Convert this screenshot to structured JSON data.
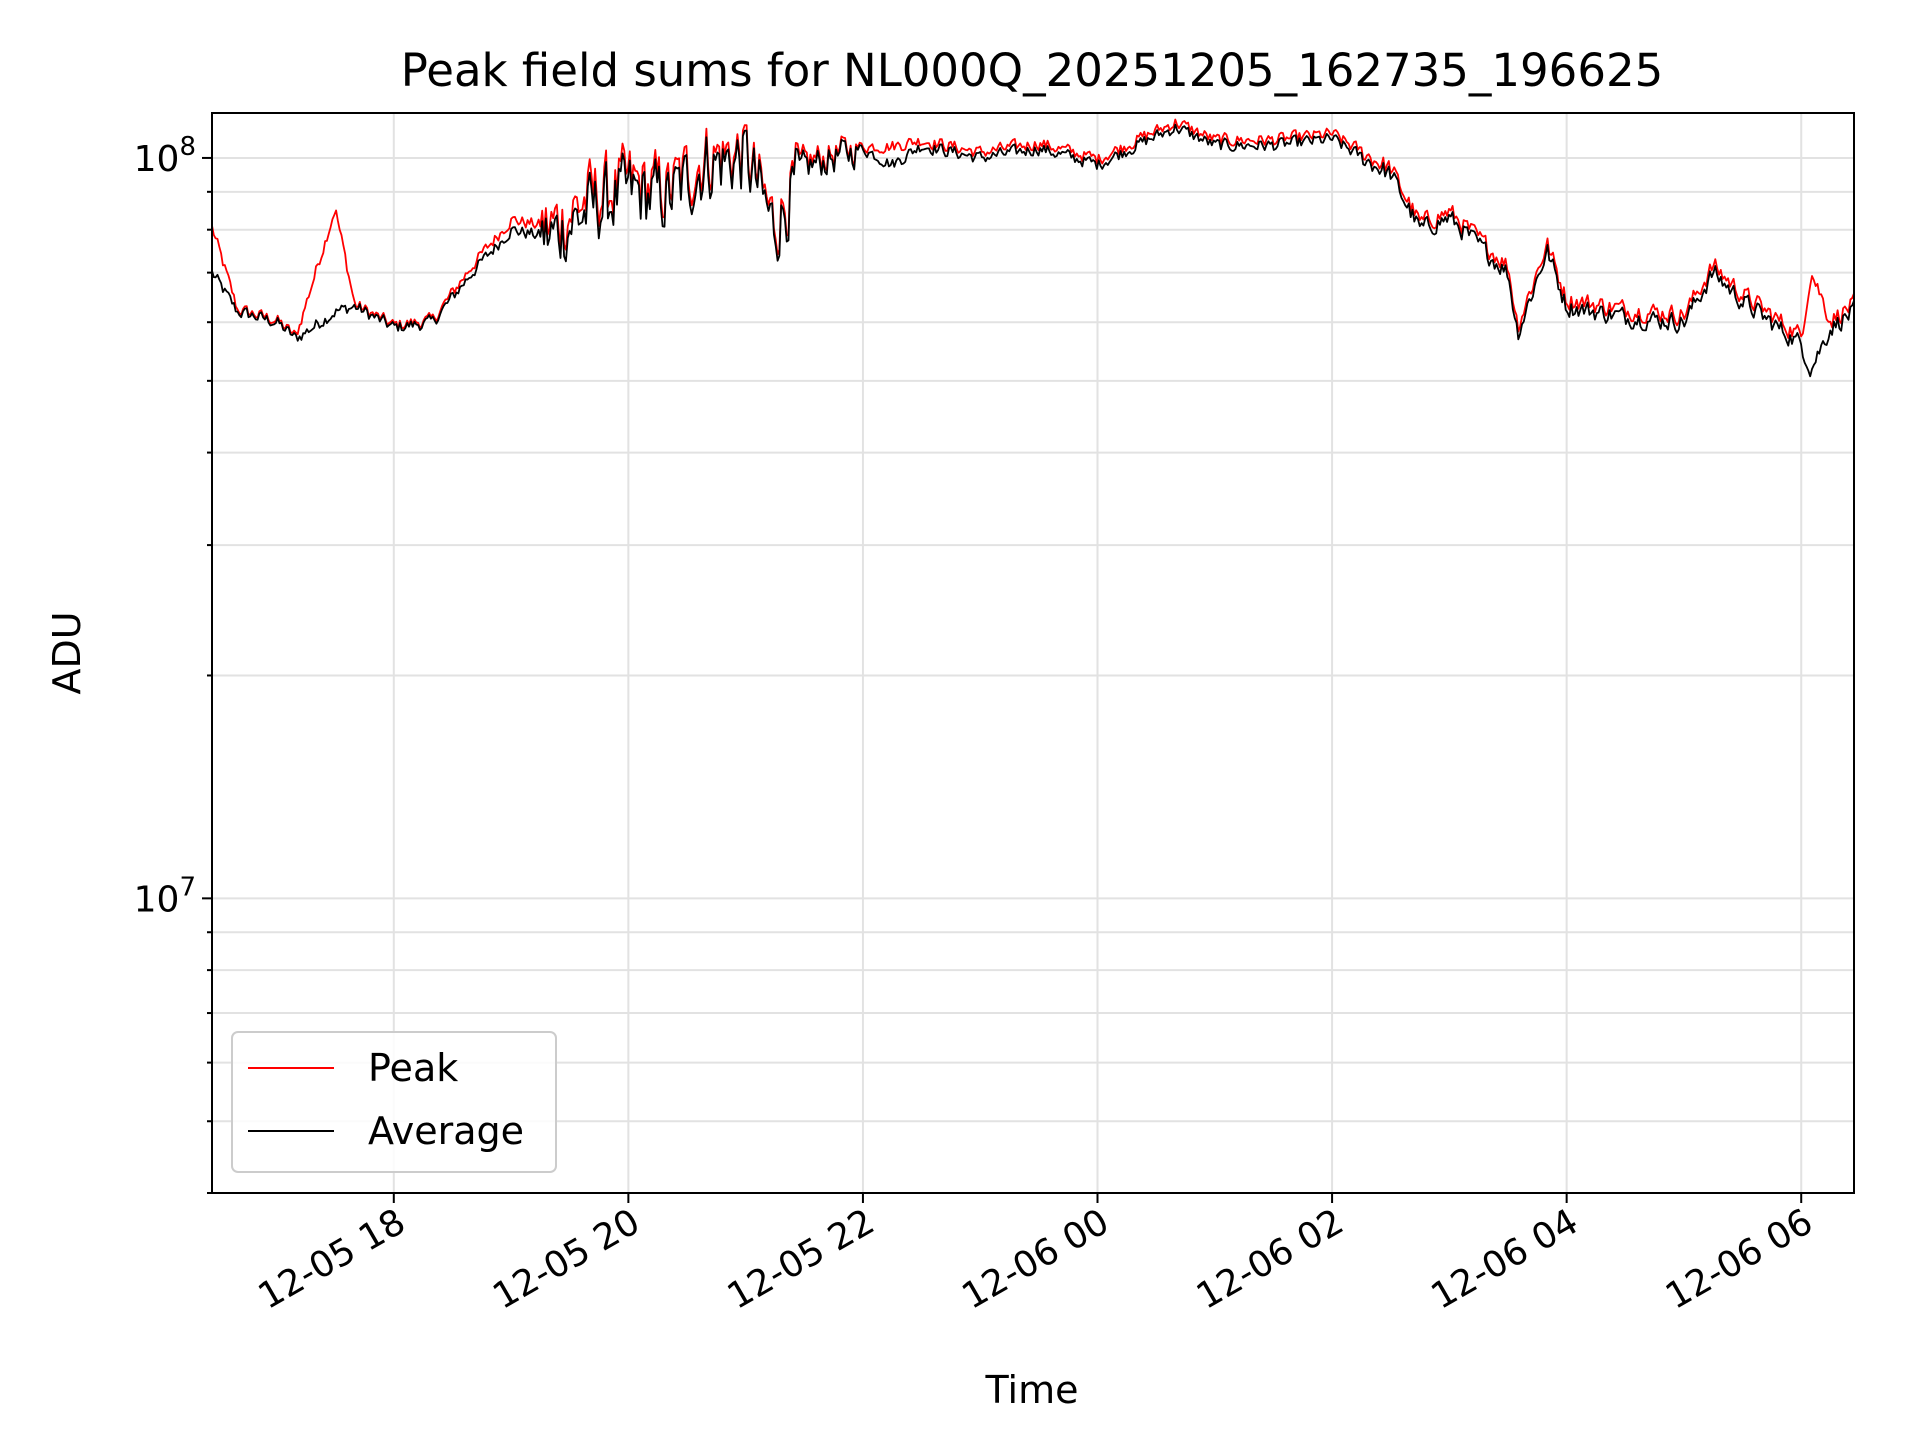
{
  "chart_data": {
    "type": "line",
    "title": "Peak field sums for NL000Q_20251205_162735_196625",
    "xlabel": "Time",
    "ylabel": "ADU",
    "yscale": "log",
    "ylim": [
      4000000,
      115000000
    ],
    "xlim": [
      "12-05 16:27",
      "12-06 06:27"
    ],
    "x_ticks": [
      "12-05 18",
      "12-05 20",
      "12-05 22",
      "12-06 00",
      "12-06 02",
      "12-06 04",
      "12-06 06"
    ],
    "y_ticks": [
      {
        "base": "10",
        "exp": "7",
        "value": 10000000
      },
      {
        "base": "10",
        "exp": "8",
        "value": 100000000
      }
    ],
    "grid": true,
    "legend_position": "lower-left",
    "series": [
      {
        "name": "Peak",
        "color": "#ff0000"
      },
      {
        "name": "Average",
        "color": "#000000"
      }
    ],
    "x": [
      "12-05 16:27",
      "12-05 16:40",
      "12-05 17:00",
      "12-05 17:10",
      "12-05 17:30",
      "12-05 17:40",
      "12-05 18:00",
      "12-05 18:20",
      "12-05 18:40",
      "12-05 19:00",
      "12-05 19:20",
      "12-05 19:40",
      "12-05 20:00",
      "12-05 20:20",
      "12-05 20:40",
      "12-05 21:00",
      "12-05 21:15",
      "12-05 21:30",
      "12-05 22:00",
      "12-05 22:15",
      "12-05 22:30",
      "12-05 23:00",
      "12-05 23:30",
      "12-06 00:00",
      "12-06 00:20",
      "12-06 00:40",
      "12-06 01:00",
      "12-06 01:30",
      "12-06 02:00",
      "12-06 02:30",
      "12-06 02:45",
      "12-06 03:00",
      "12-06 03:30",
      "12-06 03:35",
      "12-06 03:50",
      "12-06 04:00",
      "12-06 04:30",
      "12-06 05:00",
      "12-06 05:15",
      "12-06 05:30",
      "12-06 06:00",
      "12-06 06:05",
      "12-06 06:15",
      "12-06 06:27"
    ],
    "average_values": [
      70000000,
      62000000,
      60000000,
      57000000,
      62000000,
      63000000,
      59000000,
      60000000,
      70000000,
      80000000,
      78000000,
      85000000,
      90000000,
      88000000,
      98000000,
      100000000,
      80000000,
      97000000,
      103000000,
      98000000,
      104000000,
      100000000,
      103000000,
      98000000,
      104000000,
      110000000,
      104000000,
      104000000,
      106000000,
      95000000,
      80000000,
      83000000,
      70000000,
      58000000,
      75000000,
      63000000,
      61000000,
      60000000,
      70000000,
      64000000,
      56000000,
      52000000,
      59000000,
      62000000
    ],
    "peak_values": [
      80000000,
      62000000,
      60000000,
      57000000,
      85000000,
      63000000,
      59000000,
      60000000,
      71000000,
      82000000,
      80000000,
      88000000,
      92000000,
      90000000,
      100000000,
      101000000,
      81000000,
      98000000,
      103000000,
      103000000,
      105000000,
      101000000,
      104000000,
      99000000,
      105000000,
      111000000,
      105000000,
      105000000,
      107000000,
      96000000,
      81000000,
      84000000,
      71000000,
      59000000,
      76000000,
      64000000,
      62000000,
      61000000,
      71000000,
      65000000,
      57000000,
      70000000,
      60000000,
      63000000
    ]
  }
}
